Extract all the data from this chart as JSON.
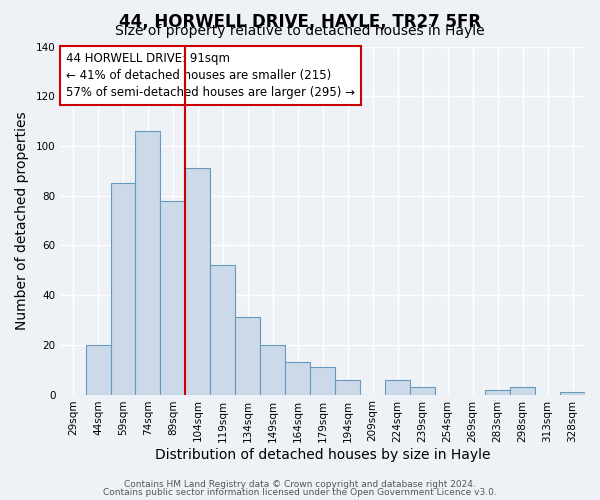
{
  "title": "44, HORWELL DRIVE, HAYLE, TR27 5FR",
  "subtitle": "Size of property relative to detached houses in Hayle",
  "xlabel": "Distribution of detached houses by size in Hayle",
  "ylabel": "Number of detached properties",
  "bin_labels": [
    "29sqm",
    "44sqm",
    "59sqm",
    "74sqm",
    "89sqm",
    "104sqm",
    "119sqm",
    "134sqm",
    "149sqm",
    "164sqm",
    "179sqm",
    "194sqm",
    "209sqm",
    "224sqm",
    "239sqm",
    "254sqm",
    "269sqm",
    "283sqm",
    "298sqm",
    "313sqm",
    "328sqm"
  ],
  "bar_heights": [
    0,
    20,
    85,
    106,
    78,
    91,
    52,
    31,
    20,
    13,
    11,
    6,
    0,
    6,
    3,
    0,
    0,
    2,
    3,
    0,
    1
  ],
  "bar_color": "#ccd9e8",
  "bar_edge_color": "#6699bb",
  "vline_x_index": 4,
  "vline_color": "#cc0000",
  "annotation_text": "44 HORWELL DRIVE: 91sqm\n← 41% of detached houses are smaller (215)\n57% of semi-detached houses are larger (295) →",
  "annotation_box_color": "#ffffff",
  "annotation_box_edge_color": "#cc0000",
  "ylim": [
    0,
    140
  ],
  "yticks": [
    0,
    20,
    40,
    60,
    80,
    100,
    120,
    140
  ],
  "footer_line1": "Contains HM Land Registry data © Crown copyright and database right 2024.",
  "footer_line2": "Contains public sector information licensed under the Open Government Licence v3.0.",
  "background_color": "#eef2f7",
  "grid_color": "#ffffff",
  "title_fontsize": 12,
  "subtitle_fontsize": 10,
  "axis_label_fontsize": 10,
  "tick_fontsize": 7.5,
  "annotation_fontsize": 8.5,
  "footer_fontsize": 6.5
}
